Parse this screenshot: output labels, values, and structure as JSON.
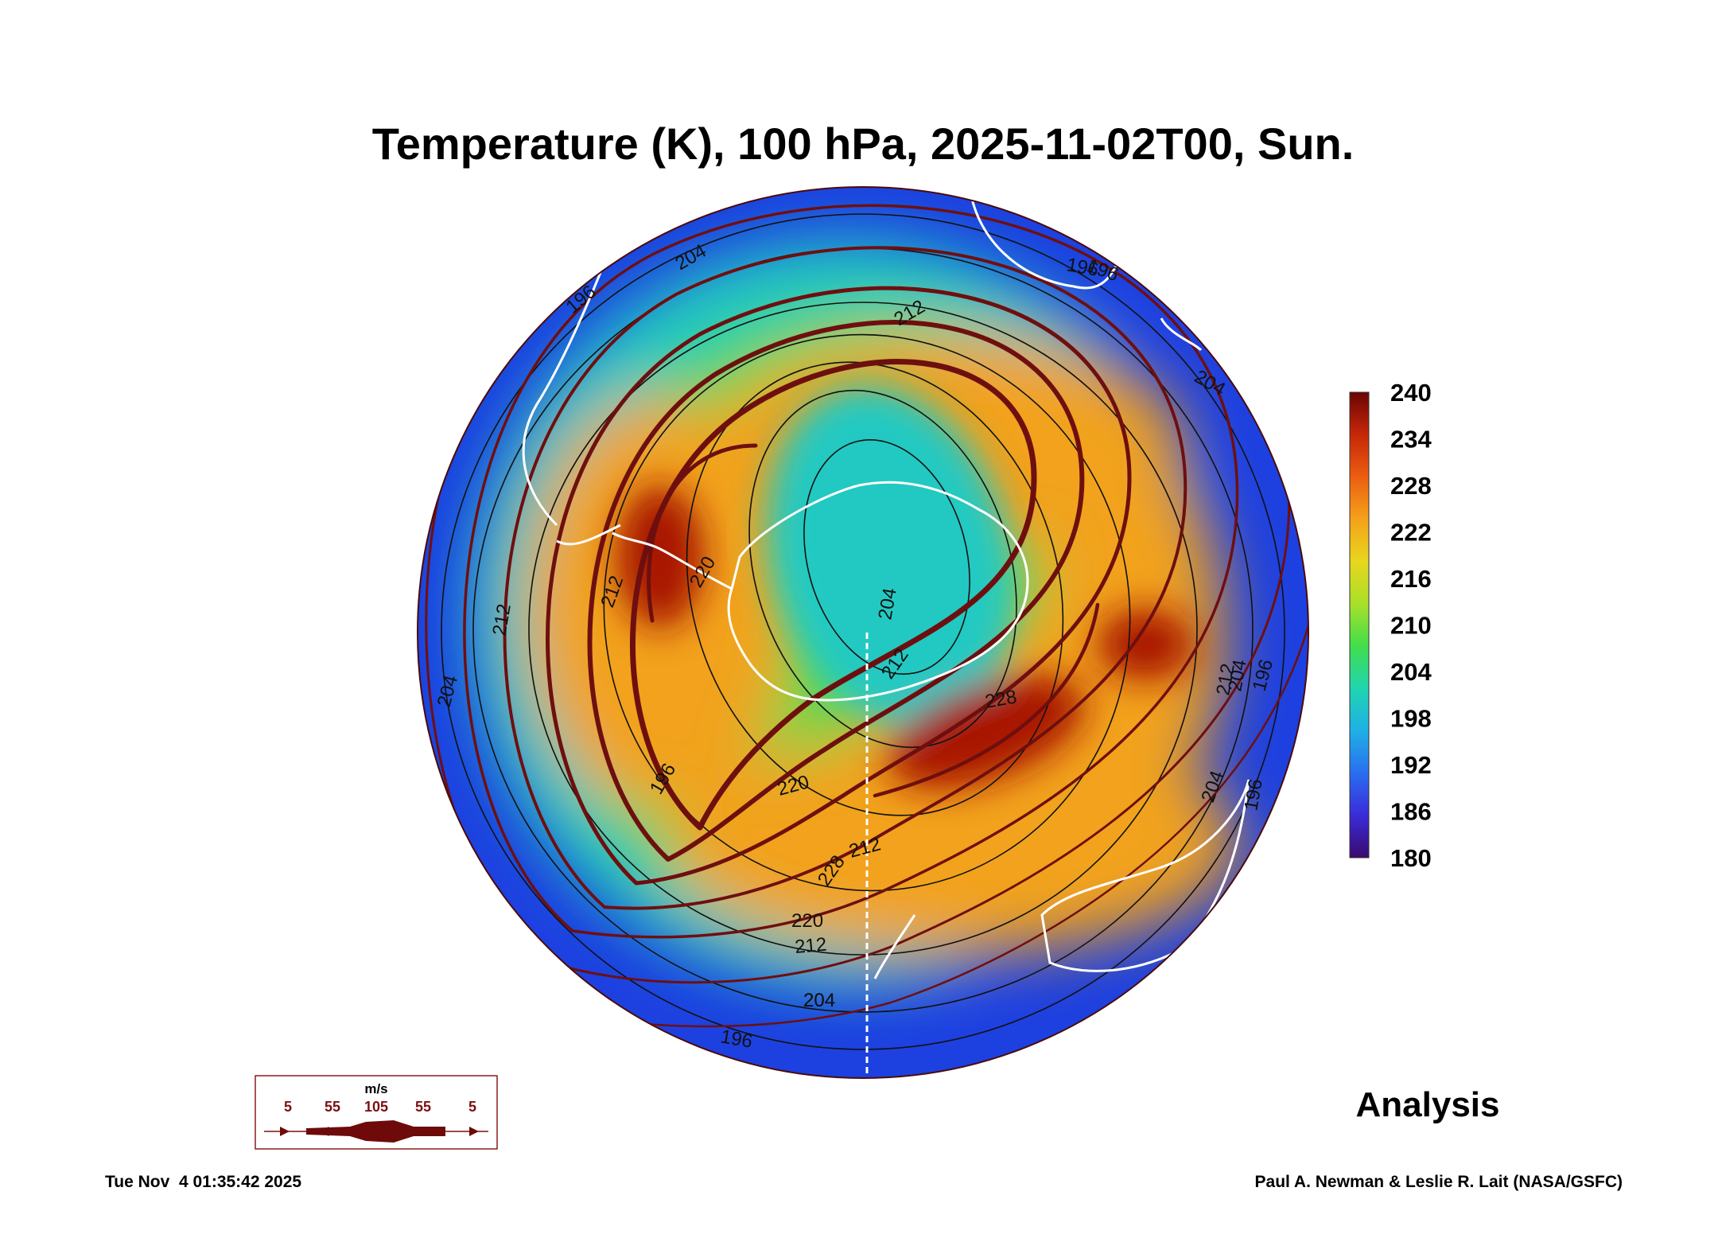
{
  "title": "Temperature (K), 100 hPa, 2025-11-02T00, Sun.",
  "map": {
    "projection": "south-polar-stereographic",
    "contour_labels": [
      "204",
      "196",
      "212",
      "212",
      "220",
      "204",
      "212",
      "228",
      "212",
      "228",
      "220",
      "212",
      "204",
      "196",
      "212",
      "204",
      "196",
      "196",
      "204",
      "196",
      "212",
      "196",
      "196",
      "204",
      "204",
      "196",
      "220",
      "204"
    ],
    "colors": {
      "cold": "#1d40e0",
      "cool": "#22c9c2",
      "mild": "#3ddc4e",
      "warm": "#f2a21d",
      "hot": "#a81800",
      "streamline": "#6e0f0f",
      "coastline": "#ffffff"
    }
  },
  "colorbar": {
    "min": 180,
    "max": 240,
    "ticks": [
      "240",
      "234",
      "228",
      "222",
      "216",
      "210",
      "204",
      "198",
      "192",
      "186",
      "180"
    ],
    "stops": [
      "#3a0a6e",
      "#3b2bd8",
      "#2a6ef0",
      "#1fb0e6",
      "#20d5b0",
      "#41de4c",
      "#a8e02a",
      "#e8d61e",
      "#f5a21a",
      "#ec5e12",
      "#c62708",
      "#6b0404"
    ]
  },
  "wind_legend": {
    "unit": "m/s",
    "labels": [
      "5",
      "55",
      "105",
      "55",
      "5"
    ]
  },
  "analysis_label": "Analysis",
  "timestamp": "Tue Nov  4 01:35:42 2025",
  "credit": "Paul A. Newman & Leslie R. Lait (NASA/GSFC)"
}
